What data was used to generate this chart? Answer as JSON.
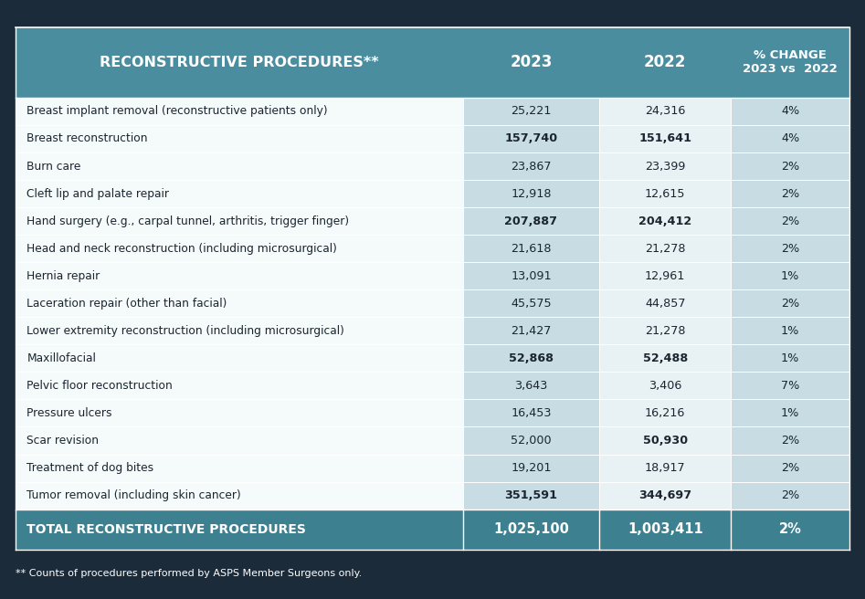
{
  "title": "RECONSTRUCTIVE PROCEDURES**",
  "col_headers": [
    "2023",
    "2022",
    "% CHANGE\n2023 vs  2022"
  ],
  "rows": [
    {
      "procedure": "Breast implant removal (reconstructive patients only)",
      "val2023": "25,221",
      "val2022": "24,316",
      "pct": "4%",
      "bold2023": false,
      "bold2022": false
    },
    {
      "procedure": "Breast reconstruction",
      "val2023": "157,740",
      "val2022": "151,641",
      "pct": "4%",
      "bold2023": true,
      "bold2022": true
    },
    {
      "procedure": "Burn care",
      "val2023": "23,867",
      "val2022": "23,399",
      "pct": "2%",
      "bold2023": false,
      "bold2022": false
    },
    {
      "procedure": "Cleft lip and palate repair",
      "val2023": "12,918",
      "val2022": "12,615",
      "pct": "2%",
      "bold2023": false,
      "bold2022": false
    },
    {
      "procedure": "Hand surgery (e.g., carpal tunnel, arthritis, trigger finger)",
      "val2023": "207,887",
      "val2022": "204,412",
      "pct": "2%",
      "bold2023": true,
      "bold2022": true
    },
    {
      "procedure": "Head and neck reconstruction (including microsurgical)",
      "val2023": "21,618",
      "val2022": "21,278",
      "pct": "2%",
      "bold2023": false,
      "bold2022": false
    },
    {
      "procedure": "Hernia repair",
      "val2023": "13,091",
      "val2022": "12,961",
      "pct": "1%",
      "bold2023": false,
      "bold2022": false
    },
    {
      "procedure": "Laceration repair (other than facial)",
      "val2023": "45,575",
      "val2022": "44,857",
      "pct": "2%",
      "bold2023": false,
      "bold2022": false
    },
    {
      "procedure": "Lower extremity reconstruction (including microsurgical)",
      "val2023": "21,427",
      "val2022": "21,278",
      "pct": "1%",
      "bold2023": false,
      "bold2022": false
    },
    {
      "procedure": "Maxillofacial",
      "val2023": "52,868",
      "val2022": "52,488",
      "pct": "1%",
      "bold2023": true,
      "bold2022": true
    },
    {
      "procedure": "Pelvic floor reconstruction",
      "val2023": "3,643",
      "val2022": "3,406",
      "pct": "7%",
      "bold2023": false,
      "bold2022": false
    },
    {
      "procedure": "Pressure ulcers",
      "val2023": "16,453",
      "val2022": "16,216",
      "pct": "1%",
      "bold2023": false,
      "bold2022": false
    },
    {
      "procedure": "Scar revision",
      "val2023": "52,000",
      "val2022": "50,930",
      "pct": "2%",
      "bold2023": false,
      "bold2022": true
    },
    {
      "procedure": "Treatment of dog bites",
      "val2023": "19,201",
      "val2022": "18,917",
      "pct": "2%",
      "bold2023": false,
      "bold2022": false
    },
    {
      "procedure": "Tumor removal (including skin cancer)",
      "val2023": "351,591",
      "val2022": "344,697",
      "pct": "2%",
      "bold2023": true,
      "bold2022": true
    }
  ],
  "total_row": {
    "procedure": "TOTAL RECONSTRUCTIVE PROCEDURES",
    "val2023": "1,025,100",
    "val2022": "1,003,411",
    "pct": "2%"
  },
  "footnote": "** Counts of procedures performed by ASPS Member Surgeons only.",
  "bg_color": "#1c2b3a",
  "header_bg": "#4a8d9f",
  "col1_bg": "#c8dde3",
  "col2_bg": "#e8f2f5",
  "col3_bg": "#c8dde3",
  "proc_bg": "#f5fafb",
  "total_bg": "#3d8090",
  "header_text_color": "#ffffff",
  "row_text_color": "#1a2530",
  "total_text_color": "#ffffff",
  "border_color": "#ffffff"
}
